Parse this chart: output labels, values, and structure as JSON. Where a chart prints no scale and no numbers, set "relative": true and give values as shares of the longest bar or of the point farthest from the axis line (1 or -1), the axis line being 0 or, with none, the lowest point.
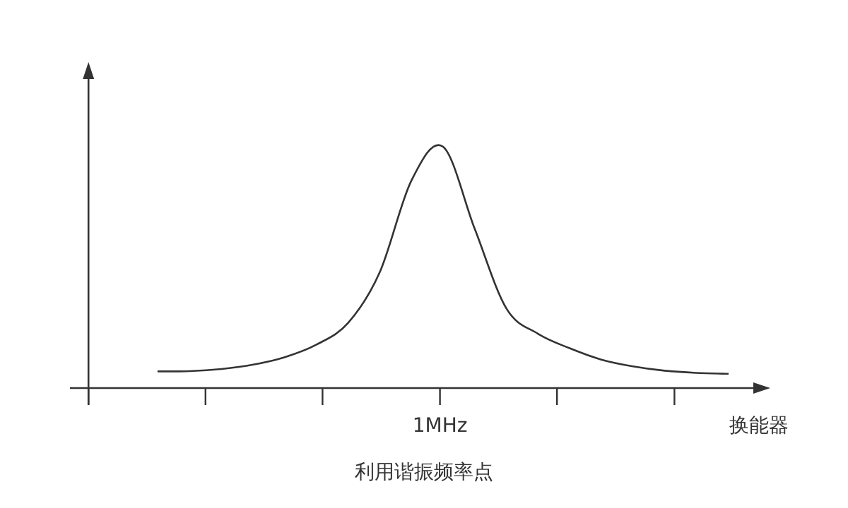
{
  "chart_data": {
    "type": "line",
    "title": "利用谐振频率点",
    "xlabel": "换能器",
    "relative": true,
    "color": "#333333",
    "categories": [
      null,
      null,
      null,
      null,
      null,
      null,
      null,
      null,
      null,
      null,
      null,
      null,
      null,
      null,
      null,
      null,
      null,
      null,
      null
    ],
    "values": [
      0.069,
      0.07,
      0.079,
      0.097,
      0.128,
      0.18,
      0.27,
      0.48,
      0.86,
      1.0,
      0.66,
      0.33,
      0.225,
      0.165,
      0.118,
      0.09,
      0.072,
      0.063,
      0.059
    ],
    "annotations": [
      "1MHz"
    ],
    "marker": "none",
    "line_style": "solid"
  }
}
